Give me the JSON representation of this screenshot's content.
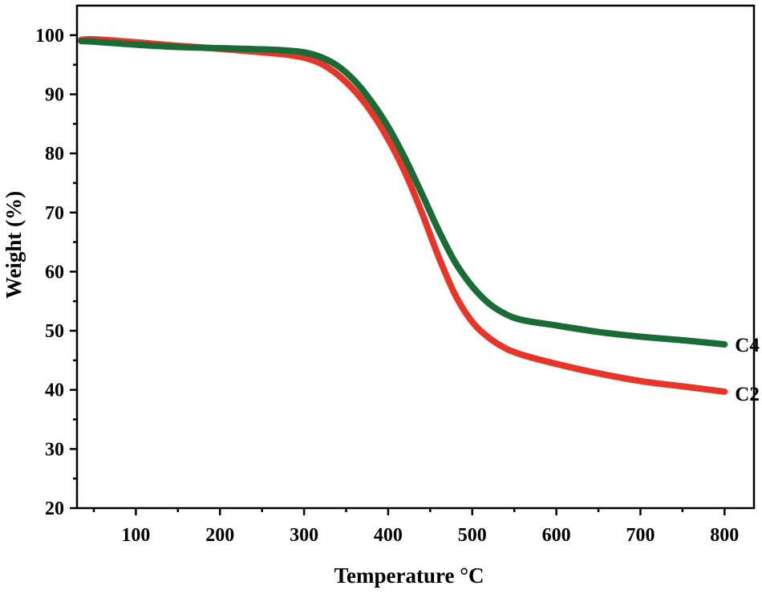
{
  "chart_data": {
    "type": "line",
    "title": "",
    "xlabel": "Temperature °C",
    "ylabel": "Weight (%)",
    "xlim": [
      30,
      835
    ],
    "ylim": [
      20,
      105
    ],
    "xticks": [
      100,
      200,
      300,
      400,
      500,
      600,
      700,
      800
    ],
    "yticks": [
      20,
      30,
      40,
      50,
      60,
      70,
      80,
      90,
      100
    ],
    "legend": "inline labels at line ends",
    "grid": false,
    "series": [
      {
        "name": "C2",
        "color": "#e8352a",
        "x": [
          35,
          50,
          100,
          150,
          200,
          250,
          280,
          300,
          320,
          340,
          360,
          380,
          400,
          420,
          440,
          460,
          480,
          500,
          520,
          540,
          560,
          600,
          650,
          700,
          750,
          800
        ],
        "y": [
          99.2,
          99.3,
          98.8,
          98.2,
          97.7,
          97.1,
          96.7,
          96.2,
          95.2,
          93.3,
          90.6,
          87.0,
          82.4,
          76.8,
          70.0,
          62.5,
          56.0,
          51.5,
          48.8,
          47.0,
          45.9,
          44.4,
          42.8,
          41.5,
          40.6,
          39.7
        ]
      },
      {
        "name": "C4",
        "color": "#1a6b35",
        "x": [
          35,
          50,
          100,
          150,
          200,
          250,
          280,
          300,
          320,
          340,
          360,
          380,
          400,
          420,
          440,
          460,
          480,
          500,
          520,
          540,
          560,
          600,
          650,
          700,
          750,
          800
        ],
        "y": [
          99.0,
          98.9,
          98.4,
          98.0,
          97.8,
          97.6,
          97.4,
          97.1,
          96.3,
          94.8,
          92.3,
          88.8,
          84.5,
          79.2,
          73.2,
          67.0,
          61.5,
          57.5,
          54.6,
          52.8,
          51.8,
          50.9,
          49.8,
          49.0,
          48.4,
          47.7
        ]
      }
    ]
  }
}
